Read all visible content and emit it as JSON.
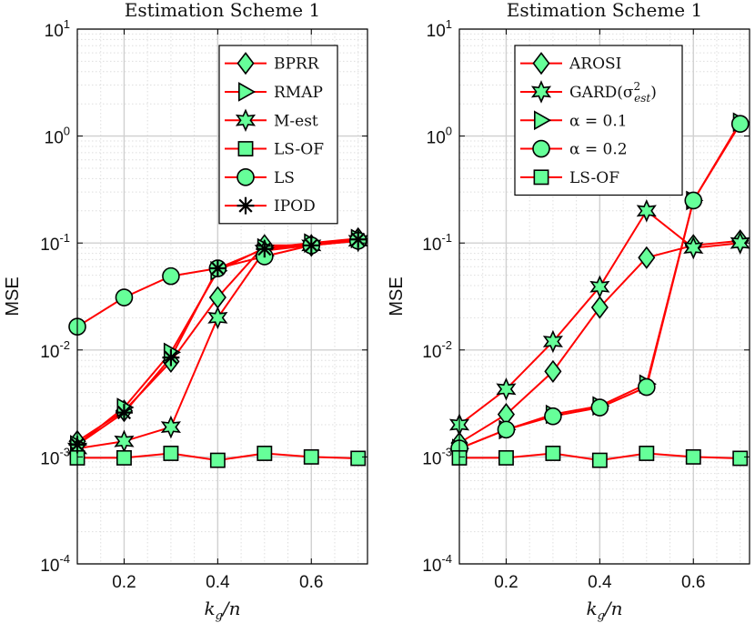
{
  "chart_data": [
    {
      "type": "line",
      "title": "Estimation Scheme 1",
      "xlabel": "k_g/n",
      "ylabel": "MSE",
      "yscale": "log",
      "xlim": [
        0.1,
        0.72
      ],
      "ylim": [
        0.0001,
        10
      ],
      "xticks": [
        "0.2",
        "0.4",
        "0.6"
      ],
      "yticks": [
        {
          "base": "10",
          "exp": "1"
        },
        {
          "base": "10",
          "exp": "0"
        },
        {
          "base": "10",
          "exp": "-1"
        },
        {
          "base": "10",
          "exp": "-2"
        },
        {
          "base": "10",
          "exp": "-3"
        },
        {
          "base": "10",
          "exp": "-4"
        }
      ],
      "x": [
        0.1,
        0.2,
        0.3,
        0.4,
        0.5,
        0.6,
        0.7
      ],
      "legend_location": "top-right",
      "series": [
        {
          "name": "BPRR",
          "marker": "diamond",
          "values": [
            0.0014,
            0.0027,
            0.0078,
            0.031,
            0.095,
            0.095,
            0.11
          ]
        },
        {
          "name": "RMAP",
          "marker": "triangle-right",
          "values": [
            0.0013,
            0.0029,
            0.0095,
            0.055,
            0.09,
            0.1,
            0.11
          ]
        },
        {
          "name": "M-est",
          "marker": "hexagram",
          "values": [
            0.0012,
            0.0014,
            0.0019,
            0.02,
            0.085,
            0.095,
            0.105
          ]
        },
        {
          "name": "LS-OF",
          "marker": "square",
          "values": [
            0.00098,
            0.00098,
            0.00108,
            0.00093,
            0.00108,
            0.001,
            0.00097
          ]
        },
        {
          "name": "LS",
          "marker": "circle",
          "values": [
            0.0165,
            0.031,
            0.049,
            0.058,
            0.075,
            0.095,
            0.105
          ]
        },
        {
          "name": "IPOD",
          "marker": "asterisk",
          "values": [
            0.0013,
            0.0026,
            0.0085,
            0.058,
            0.088,
            0.095,
            0.108
          ]
        }
      ]
    },
    {
      "type": "line",
      "title": "Estimation Scheme 1",
      "xlabel": "k_g/n",
      "ylabel": "MSE",
      "yscale": "log",
      "xlim": [
        0.1,
        0.72
      ],
      "ylim": [
        0.0001,
        10
      ],
      "xticks": [
        "0.2",
        "0.4",
        "0.6"
      ],
      "yticks": [
        {
          "base": "10",
          "exp": "1"
        },
        {
          "base": "10",
          "exp": "0"
        },
        {
          "base": "10",
          "exp": "-1"
        },
        {
          "base": "10",
          "exp": "-2"
        },
        {
          "base": "10",
          "exp": "-3"
        },
        {
          "base": "10",
          "exp": "-4"
        }
      ],
      "x": [
        0.1,
        0.2,
        0.3,
        0.4,
        0.5,
        0.6,
        0.7
      ],
      "legend_location": "top-left",
      "series": [
        {
          "name": "AROSI",
          "marker": "diamond",
          "values": [
            0.00135,
            0.0025,
            0.0063,
            0.025,
            0.073,
            0.095,
            0.105
          ]
        },
        {
          "name": "GARD(σ²_est)",
          "marker": "hexagram",
          "values": [
            0.002,
            0.0043,
            0.012,
            0.039,
            0.2,
            0.09,
            0.1
          ]
        },
        {
          "name": "α = 0.1",
          "marker": "triangle-right",
          "values": [
            0.0012,
            0.0018,
            0.0025,
            0.003,
            0.0048,
            0.25,
            1.35
          ]
        },
        {
          "name": "α = 0.2",
          "marker": "circle",
          "values": [
            0.0012,
            0.0018,
            0.0024,
            0.0029,
            0.0045,
            0.25,
            1.3
          ]
        },
        {
          "name": "LS-OF",
          "marker": "square",
          "values": [
            0.00098,
            0.00098,
            0.00108,
            0.00093,
            0.00108,
            0.001,
            0.00097
          ]
        }
      ]
    }
  ],
  "colors": {
    "line": "#ff0000",
    "marker_fill": "#66ff99",
    "marker_edge": "#000000",
    "grid_major": "#d0d0d0",
    "grid_minor": "#dedede"
  }
}
